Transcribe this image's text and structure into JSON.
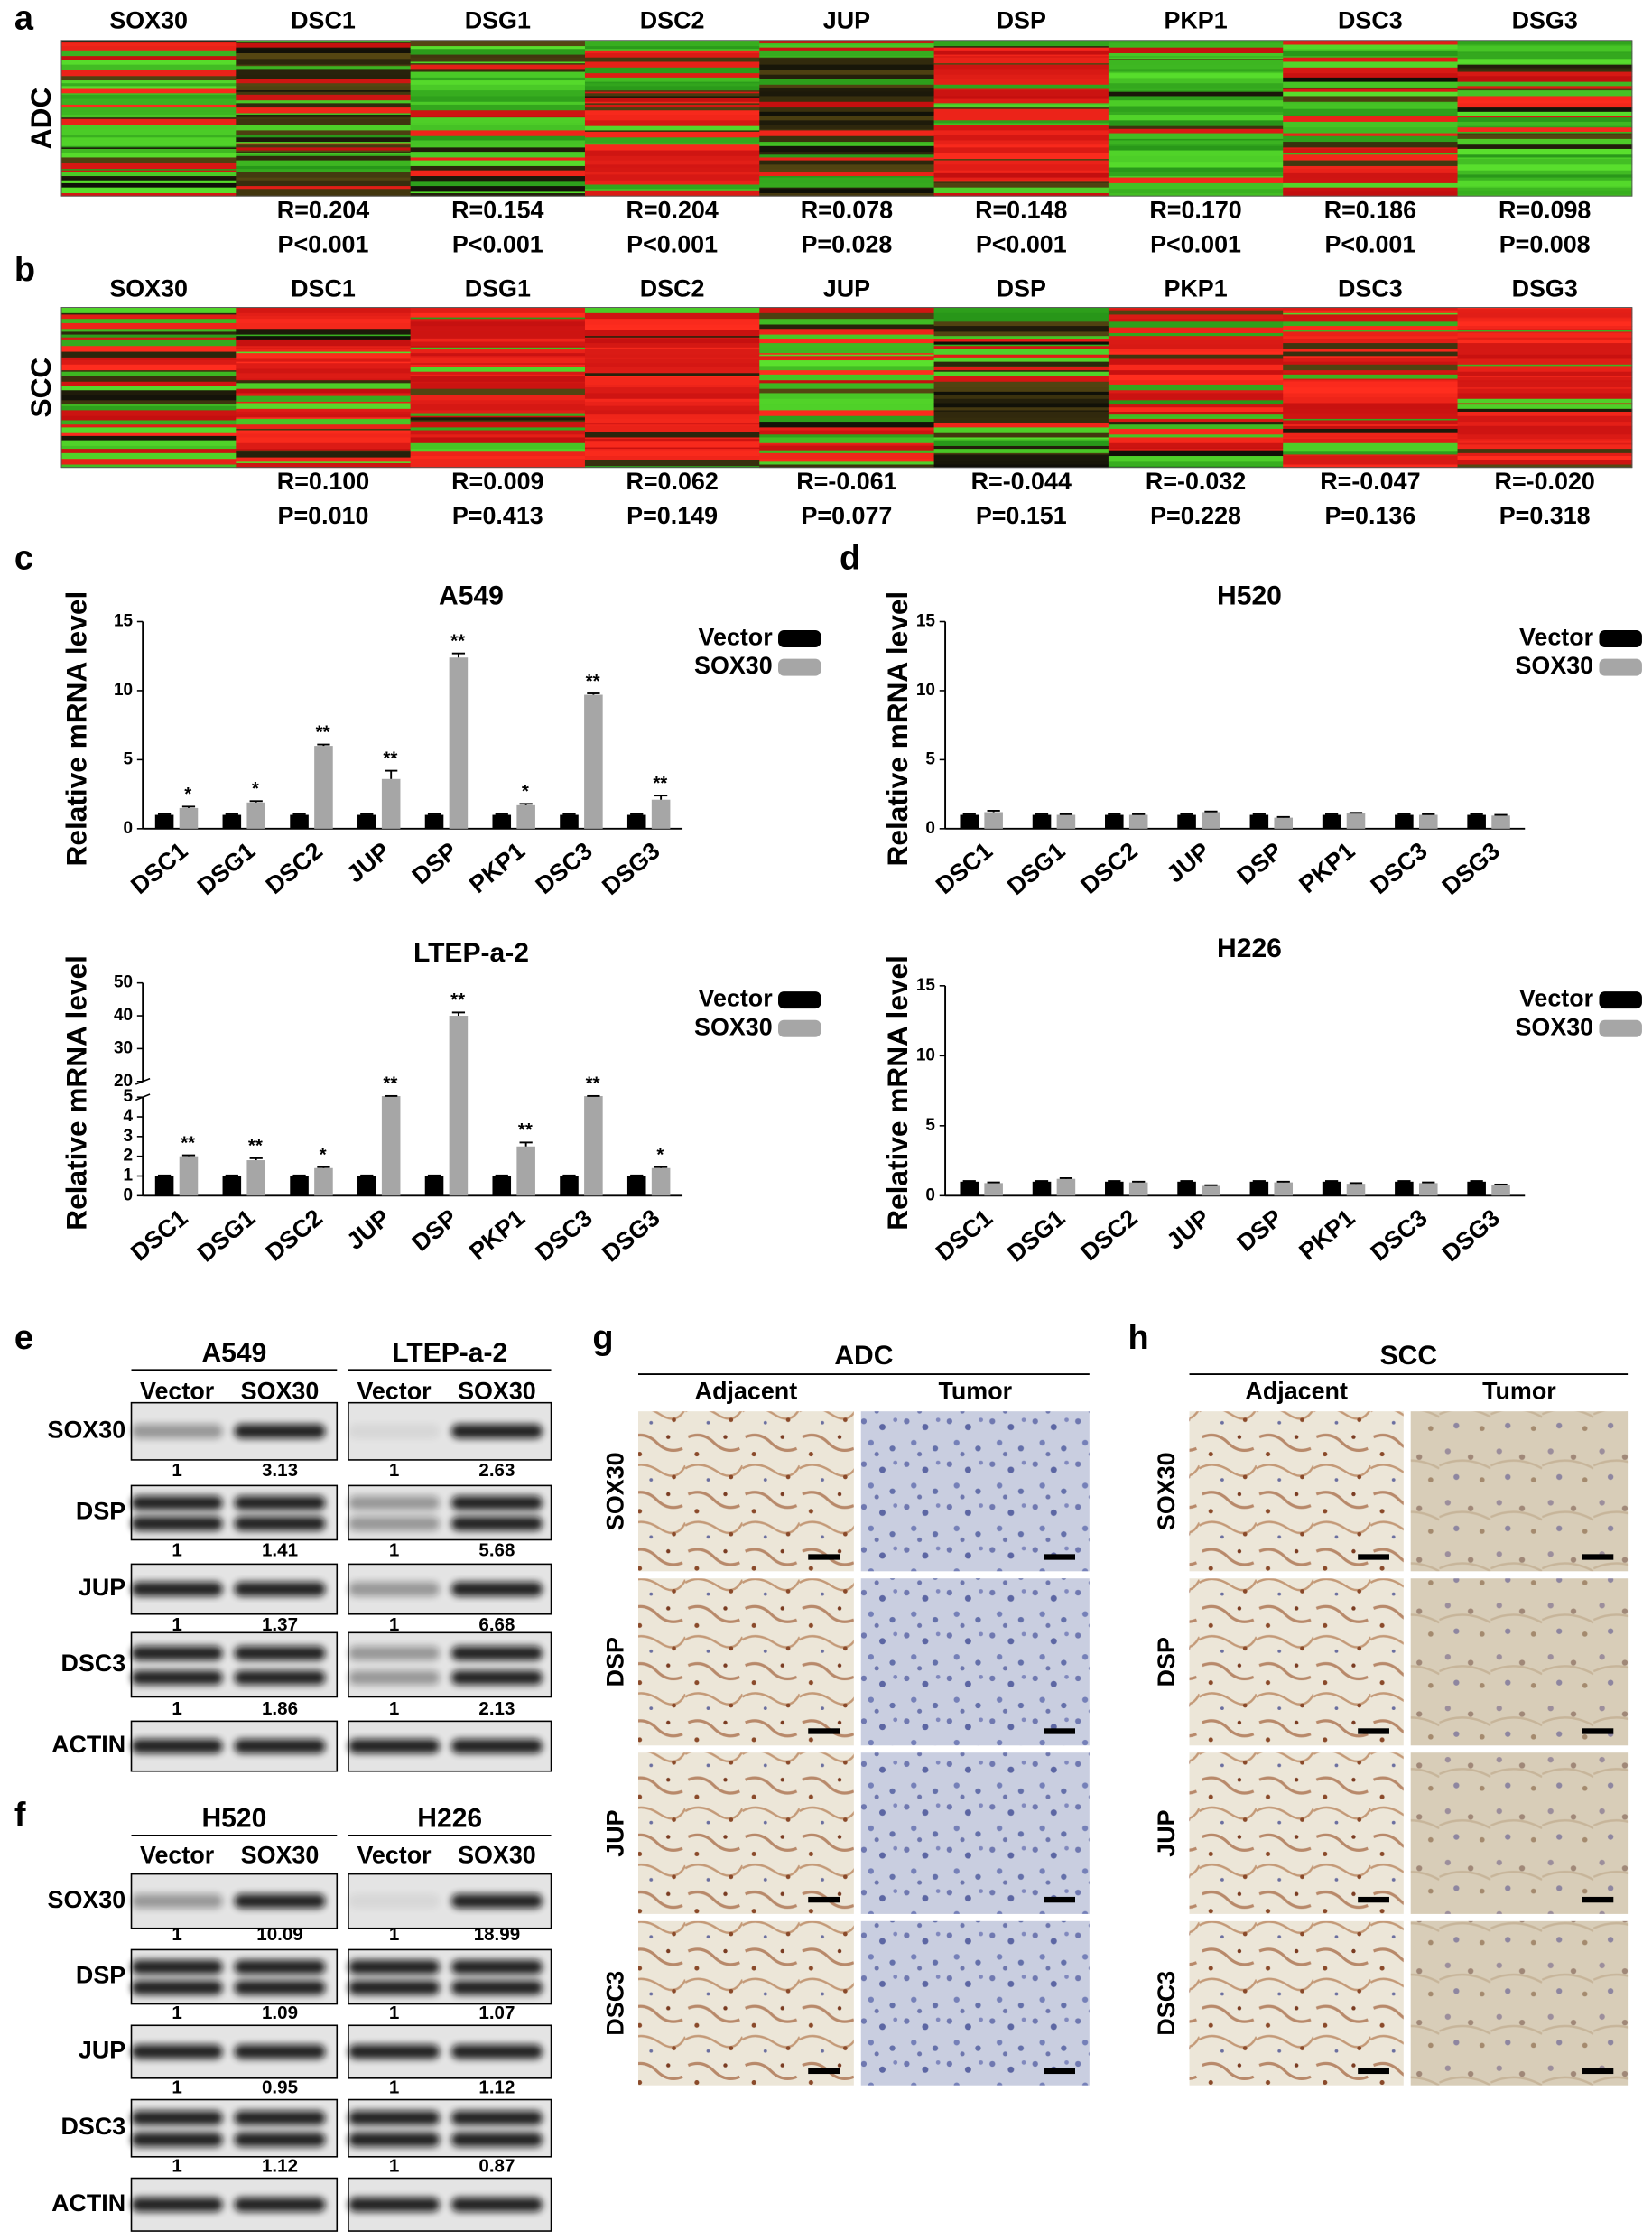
{
  "chart_data": [
    {
      "type": "heatmap",
      "panel": "a",
      "row_label": "ADC",
      "columns": [
        "SOX30",
        "DSC1",
        "DSG1",
        "DSC2",
        "JUP",
        "DSP",
        "PKP1",
        "DSC3",
        "DSG3"
      ],
      "stats": [
        [
          "R=0.204",
          "P<0.001"
        ],
        [
          "R=0.154",
          "P<0.001"
        ],
        [
          "R=0.204",
          "P<0.001"
        ],
        [
          "R=0.078",
          "P=0.028"
        ],
        [
          "R=0.148",
          "P<0.001"
        ],
        [
          "R=0.170",
          "P<0.001"
        ],
        [
          "R=0.186",
          "P<0.001"
        ],
        [
          "R=0.098",
          "P=0.008"
        ]
      ]
    },
    {
      "type": "heatmap",
      "panel": "b",
      "row_label": "SCC",
      "columns": [
        "SOX30",
        "DSC1",
        "DSG1",
        "DSC2",
        "JUP",
        "DSP",
        "PKP1",
        "DSC3",
        "DSG3"
      ],
      "stats": [
        [
          "R=0.100",
          "P=0.010"
        ],
        [
          "R=0.009",
          "P=0.413"
        ],
        [
          "R=0.062",
          "P=0.149"
        ],
        [
          "R=-0.061",
          "P=0.077"
        ],
        [
          "R=-0.044",
          "P=0.151"
        ],
        [
          "R=-0.032",
          "P=0.228"
        ],
        [
          "R=-0.047",
          "P=0.136"
        ],
        [
          "R=-0.020",
          "P=0.318"
        ]
      ]
    },
    {
      "type": "bar",
      "panel": "c",
      "title": "A549",
      "y_label": "Relative mRNA level",
      "categories": [
        "DSC1",
        "DSG1",
        "DSC2",
        "JUP",
        "DSP",
        "PKP1",
        "DSC3",
        "DSG3"
      ],
      "ylim": [
        0,
        15
      ],
      "yticks": [
        0,
        5,
        10,
        15
      ],
      "series": [
        {
          "name": "Vector",
          "color": "#000000",
          "values": [
            1,
            1,
            1,
            1,
            1,
            1,
            1,
            1
          ],
          "errors": [
            0.05,
            0.05,
            0.05,
            0.05,
            0.05,
            0.05,
            0.05,
            0.05
          ]
        },
        {
          "name": "SOX30",
          "color": "#a6a6a6",
          "values": [
            1.5,
            1.9,
            6.0,
            3.6,
            12.4,
            1.7,
            9.7,
            2.1
          ],
          "errors": [
            0.1,
            0.1,
            0.1,
            0.6,
            0.3,
            0.1,
            0.1,
            0.3
          ]
        }
      ],
      "significance": [
        "*",
        "*",
        "**",
        "**",
        "**",
        "*",
        "**",
        "**"
      ]
    },
    {
      "type": "bar",
      "title": "LTEP-a-2",
      "y_label": "Relative mRNA level",
      "categories": [
        "DSC1",
        "DSG1",
        "DSC2",
        "JUP",
        "DSP",
        "PKP1",
        "DSC3",
        "DSG3"
      ],
      "ylim": [
        0,
        50
      ],
      "yticks": [
        0,
        1,
        2,
        3,
        4,
        5,
        20,
        30,
        40,
        50
      ],
      "axis_break": [
        5,
        20
      ],
      "series": [
        {
          "name": "Vector",
          "color": "#000000",
          "values": [
            1,
            1,
            1,
            1,
            1,
            1,
            1,
            1
          ],
          "errors": [
            0.03,
            0.03,
            0.03,
            0.03,
            0.03,
            0.03,
            0.03,
            0.03
          ]
        },
        {
          "name": "SOX30",
          "color": "#a6a6a6",
          "values": [
            2.0,
            1.8,
            1.4,
            6,
            40,
            2.5,
            6,
            1.4
          ],
          "errors": [
            0.05,
            0.1,
            0.05,
            0.1,
            1.0,
            0.2,
            0.1,
            0.05
          ]
        }
      ],
      "significance": [
        "**",
        "**",
        "*",
        "**",
        "**",
        "**",
        "**",
        "*"
      ]
    },
    {
      "type": "bar",
      "panel": "d",
      "title": "H520",
      "y_label": "Relative mRNA level",
      "categories": [
        "DSC1",
        "DSG1",
        "DSC2",
        "JUP",
        "DSP",
        "PKP1",
        "DSC3",
        "DSG3"
      ],
      "ylim": [
        0,
        15
      ],
      "yticks": [
        0,
        5,
        10,
        15
      ],
      "series": [
        {
          "name": "Vector",
          "color": "#000000",
          "values": [
            1,
            1,
            1,
            1,
            1,
            1,
            1,
            1
          ],
          "errors": [
            0.05,
            0.05,
            0.05,
            0.05,
            0.05,
            0.05,
            0.05,
            0.05
          ]
        },
        {
          "name": "SOX30",
          "color": "#a6a6a6",
          "values": [
            1.2,
            1.0,
            1.0,
            1.2,
            0.8,
            1.1,
            1.0,
            0.95
          ],
          "errors": [
            0.1,
            0.05,
            0.05,
            0.05,
            0.05,
            0.05,
            0.05,
            0.05
          ]
        }
      ]
    },
    {
      "type": "bar",
      "title": "H226",
      "y_label": "Relative mRNA level",
      "categories": [
        "DSC1",
        "DSG1",
        "DSC2",
        "JUP",
        "DSP",
        "PKP1",
        "DSC3",
        "DSG3"
      ],
      "ylim": [
        0,
        15
      ],
      "yticks": [
        0,
        5,
        10,
        15
      ],
      "series": [
        {
          "name": "Vector",
          "color": "#000000",
          "values": [
            1,
            1,
            1,
            1,
            1,
            1,
            1,
            1
          ],
          "errors": [
            0.05,
            0.05,
            0.05,
            0.05,
            0.05,
            0.05,
            0.05,
            0.05
          ]
        },
        {
          "name": "SOX30",
          "color": "#a6a6a6",
          "values": [
            0.9,
            1.2,
            0.95,
            0.7,
            0.95,
            0.85,
            0.9,
            0.75
          ],
          "errors": [
            0.05,
            0.05,
            0.05,
            0.05,
            0.05,
            0.05,
            0.05,
            0.05
          ]
        }
      ]
    }
  ],
  "blots": [
    {
      "panel": "e",
      "row_labels": [
        "SOX30",
        "DSP",
        "JUP",
        "DSC3",
        "ACTIN"
      ],
      "groups": [
        {
          "title": "A549",
          "lanes": [
            "Vector",
            "SOX30"
          ],
          "ratios": [
            [
              1,
              3.13
            ],
            [
              1,
              1.41
            ],
            [
              1,
              1.37
            ],
            [
              1,
              1.86
            ]
          ]
        },
        {
          "title": "LTEP-a-2",
          "lanes": [
            "Vector",
            "SOX30"
          ],
          "ratios": [
            [
              1,
              2.63
            ],
            [
              1,
              5.68
            ],
            [
              1,
              6.68
            ],
            [
              1,
              2.13
            ]
          ]
        }
      ]
    },
    {
      "panel": "f",
      "row_labels": [
        "SOX30",
        "DSP",
        "JUP",
        "DSC3",
        "ACTIN"
      ],
      "groups": [
        {
          "title": "H520",
          "lanes": [
            "Vector",
            "SOX30"
          ],
          "ratios": [
            [
              1,
              10.09
            ],
            [
              1,
              1.09
            ],
            [
              1,
              0.95
            ],
            [
              1,
              1.12
            ]
          ]
        },
        {
          "title": "H226",
          "lanes": [
            "Vector",
            "SOX30"
          ],
          "ratios": [
            [
              1,
              18.99
            ],
            [
              1,
              1.07
            ],
            [
              1,
              1.12
            ],
            [
              1,
              0.87
            ]
          ]
        }
      ]
    }
  ],
  "ihc": [
    {
      "panel": "g",
      "title": "ADC",
      "columns": [
        "Adjacent",
        "Tumor"
      ],
      "rows": [
        "SOX30",
        "DSP",
        "JUP",
        "DSC3"
      ]
    },
    {
      "panel": "h",
      "title": "SCC",
      "columns": [
        "Adjacent",
        "Tumor"
      ],
      "rows": [
        "SOX30",
        "DSP",
        "JUP",
        "DSC3"
      ]
    }
  ]
}
